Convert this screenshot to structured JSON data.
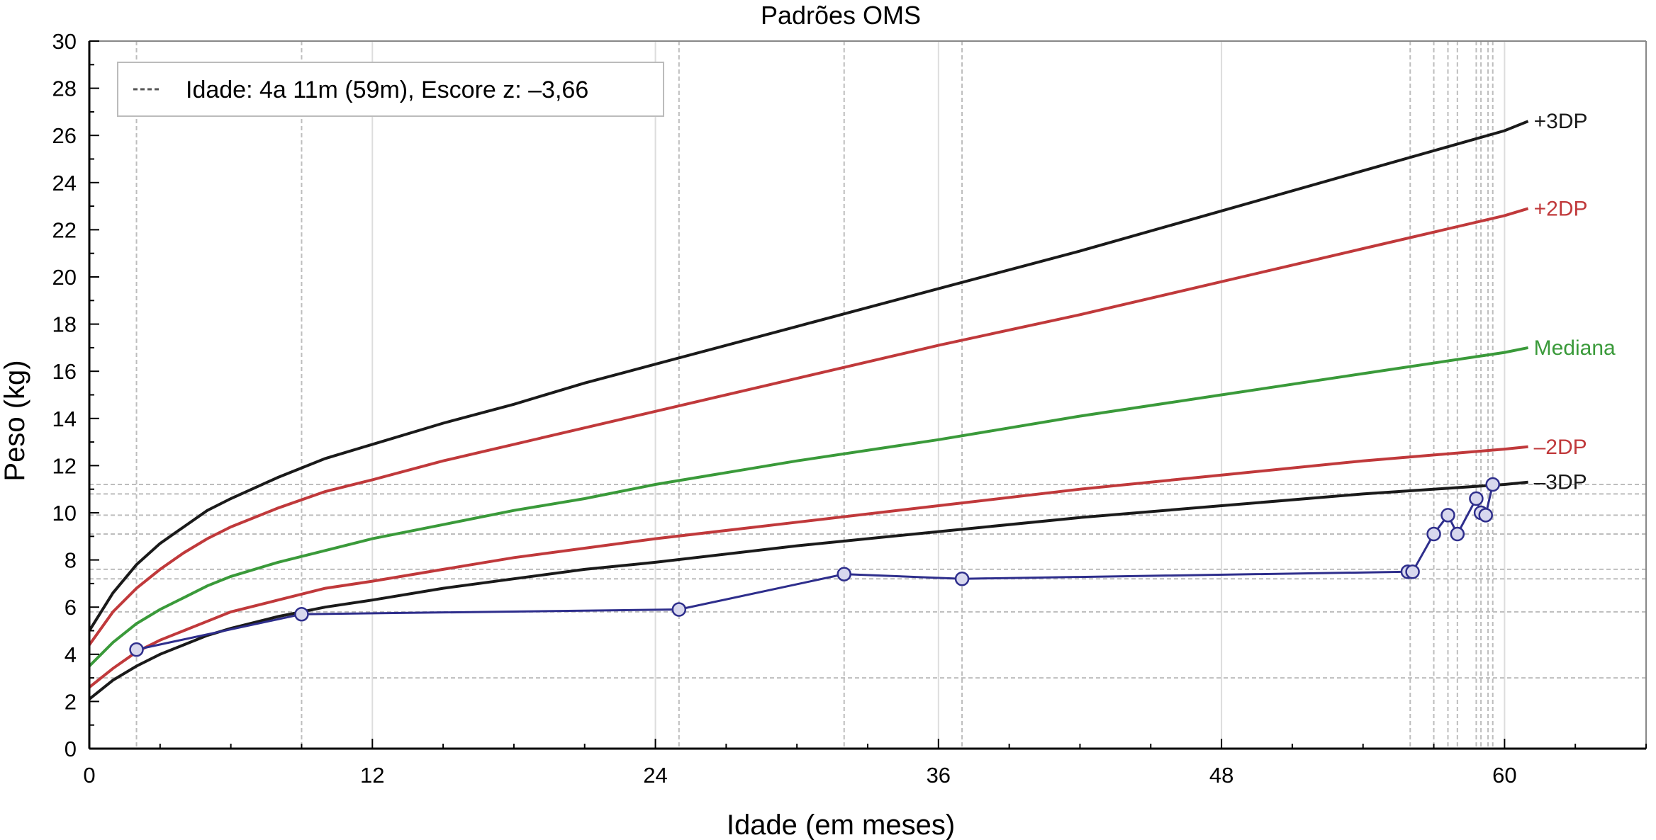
{
  "chart_data": {
    "type": "line",
    "title": "Padrões OMS",
    "xlabel": "Idade (em meses)",
    "ylabel": "Peso (kg)",
    "xlim": [
      0,
      66
    ],
    "ylim": [
      0,
      30
    ],
    "x_ticks": [
      0,
      12,
      24,
      36,
      48,
      60
    ],
    "y_ticks": [
      0,
      2,
      4,
      6,
      8,
      10,
      12,
      14,
      16,
      18,
      20,
      22,
      24,
      26,
      28,
      30
    ],
    "grid": "partial",
    "legend": {
      "position": "top-left",
      "entries": [
        "Idade: 4a 11m (59m), Escore z: –3,66"
      ]
    },
    "series": [
      {
        "name": "+3DP",
        "color": "#1a1a1a",
        "x": [
          0,
          1,
          2,
          3,
          4,
          5,
          6,
          8,
          10,
          12,
          15,
          18,
          21,
          24,
          30,
          36,
          42,
          48,
          54,
          60,
          61
        ],
        "y": [
          5.0,
          6.6,
          7.8,
          8.7,
          9.4,
          10.1,
          10.6,
          11.5,
          12.3,
          12.9,
          13.8,
          14.6,
          15.5,
          16.3,
          17.9,
          19.5,
          21.1,
          22.8,
          24.5,
          26.2,
          26.6
        ]
      },
      {
        "name": "+2DP",
        "color": "#c0393b",
        "x": [
          0,
          1,
          2,
          3,
          4,
          5,
          6,
          8,
          10,
          12,
          15,
          18,
          21,
          24,
          30,
          36,
          42,
          48,
          54,
          60,
          61
        ],
        "y": [
          4.4,
          5.8,
          6.8,
          7.6,
          8.3,
          8.9,
          9.4,
          10.2,
          10.9,
          11.4,
          12.2,
          12.9,
          13.6,
          14.3,
          15.7,
          17.1,
          18.4,
          19.8,
          21.2,
          22.6,
          22.9
        ]
      },
      {
        "name": "Mediana",
        "color": "#3a9a3a",
        "x": [
          0,
          1,
          2,
          3,
          4,
          5,
          6,
          8,
          10,
          12,
          15,
          18,
          21,
          24,
          30,
          36,
          42,
          48,
          54,
          60,
          61
        ],
        "y": [
          3.5,
          4.5,
          5.3,
          5.9,
          6.4,
          6.9,
          7.3,
          7.9,
          8.4,
          8.9,
          9.5,
          10.1,
          10.6,
          11.2,
          12.2,
          13.1,
          14.1,
          15.0,
          15.9,
          16.8,
          17.0
        ]
      },
      {
        "name": "–2DP",
        "color": "#c0393b",
        "x": [
          0,
          1,
          2,
          3,
          4,
          5,
          6,
          8,
          10,
          12,
          15,
          18,
          21,
          24,
          30,
          36,
          42,
          48,
          54,
          60,
          61
        ],
        "y": [
          2.6,
          3.4,
          4.1,
          4.6,
          5.0,
          5.4,
          5.8,
          6.3,
          6.8,
          7.1,
          7.6,
          8.1,
          8.5,
          8.9,
          9.6,
          10.3,
          11.0,
          11.6,
          12.2,
          12.7,
          12.8
        ]
      },
      {
        "name": "–3DP",
        "color": "#1a1a1a",
        "x": [
          0,
          1,
          2,
          3,
          4,
          5,
          6,
          8,
          10,
          12,
          15,
          18,
          21,
          24,
          30,
          36,
          42,
          48,
          54,
          60,
          61
        ],
        "y": [
          2.1,
          2.9,
          3.5,
          4.0,
          4.4,
          4.8,
          5.1,
          5.6,
          6.0,
          6.3,
          6.8,
          7.2,
          7.6,
          7.9,
          8.6,
          9.2,
          9.8,
          10.3,
          10.8,
          11.2,
          11.3
        ]
      },
      {
        "color": "#2e2e8c",
        "markers": true,
        "x": [
          2.0,
          9.0,
          25.0,
          32.0,
          37.0,
          55.9,
          56.1,
          57.0,
          57.6,
          58.0,
          58.8,
          59.0,
          59.2,
          59.5
        ],
        "y": [
          4.2,
          5.7,
          5.9,
          7.4,
          7.2,
          7.5,
          7.5,
          9.1,
          9.9,
          9.1,
          10.6,
          10.0,
          9.9,
          11.2
        ]
      }
    ],
    "reference_lines_x": [
      2.0,
      9.0,
      25.0,
      32.0,
      37.0,
      56.0,
      57.0,
      57.6,
      58.0,
      58.8,
      59.0,
      59.3,
      59.5
    ],
    "reference_lines_y": [
      3.0,
      5.8,
      7.2,
      7.6,
      9.1,
      9.9,
      10.8,
      11.2
    ]
  }
}
